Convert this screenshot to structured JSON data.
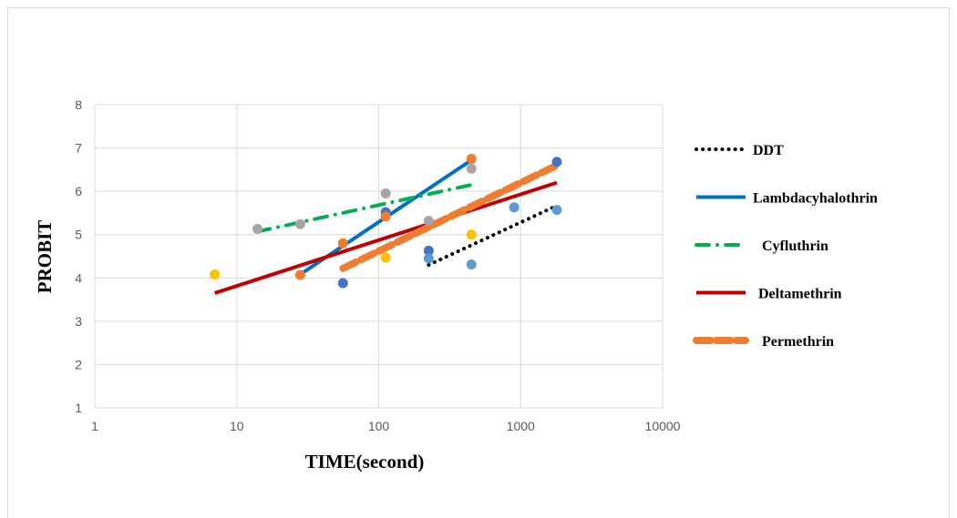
{
  "chart_data": {
    "type": "scatter",
    "xscale": "log",
    "xlim": [
      1,
      10000
    ],
    "ylim": [
      1,
      8
    ],
    "xticks": [
      1,
      10,
      100,
      1000,
      10000
    ],
    "yticks": [
      1,
      2,
      3,
      4,
      5,
      6,
      7,
      8
    ],
    "xticklabels": [
      "1",
      "10",
      "100",
      "1000",
      "10000"
    ],
    "yticklabels": [
      "1",
      "2",
      "3",
      "4",
      "5",
      "6",
      "7",
      "8"
    ],
    "xlabel": "TIME(second)",
    "ylabel": "PROBIT",
    "grid": true,
    "legend_position": "right",
    "points": [
      {
        "color": "#FFC000",
        "data": [
          [
            7,
            4.08
          ],
          [
            112,
            4.47
          ],
          [
            450,
            5.0
          ]
        ]
      },
      {
        "color": "#4472C4",
        "data": [
          [
            56,
            3.88
          ],
          [
            112,
            5.52
          ],
          [
            225,
            4.63
          ],
          [
            1800,
            6.68
          ]
        ]
      },
      {
        "color": "#A5A5A5",
        "data": [
          [
            14,
            5.13
          ],
          [
            28,
            5.24
          ],
          [
            112,
            5.95
          ],
          [
            225,
            5.32
          ],
          [
            450,
            6.52
          ]
        ]
      },
      {
        "color": "#ED7D31",
        "data": [
          [
            28,
            4.07
          ],
          [
            56,
            4.8
          ],
          [
            112,
            5.42
          ],
          [
            450,
            6.75
          ]
        ]
      },
      {
        "color": "#5B9BD5",
        "data": [
          [
            225,
            4.45
          ],
          [
            450,
            4.31
          ],
          [
            900,
            5.63
          ],
          [
            1800,
            5.57
          ]
        ]
      }
    ],
    "series": [
      {
        "name": "DDT",
        "color": "#000000",
        "style": "dotted",
        "x": [
          225,
          1800
        ],
        "y": [
          4.3,
          5.67
        ]
      },
      {
        "name": "Lambdacyhalothrin",
        "color": "#0070C0",
        "style": "solid",
        "x": [
          28,
          450
        ],
        "y": [
          4.08,
          6.72
        ]
      },
      {
        "name": "Cyfluthrin",
        "color": "#00B050",
        "style": "dashdot",
        "x": [
          14,
          450
        ],
        "y": [
          5.07,
          6.15
        ]
      },
      {
        "name": "Deltamethrin",
        "color": "#C00000",
        "style": "solid",
        "x": [
          7,
          1800
        ],
        "y": [
          3.65,
          6.2
        ]
      },
      {
        "name": "Permethrin",
        "color": "#ED7D31",
        "style": "dashed",
        "x": [
          56,
          1800
        ],
        "y": [
          4.22,
          6.6
        ]
      }
    ]
  }
}
